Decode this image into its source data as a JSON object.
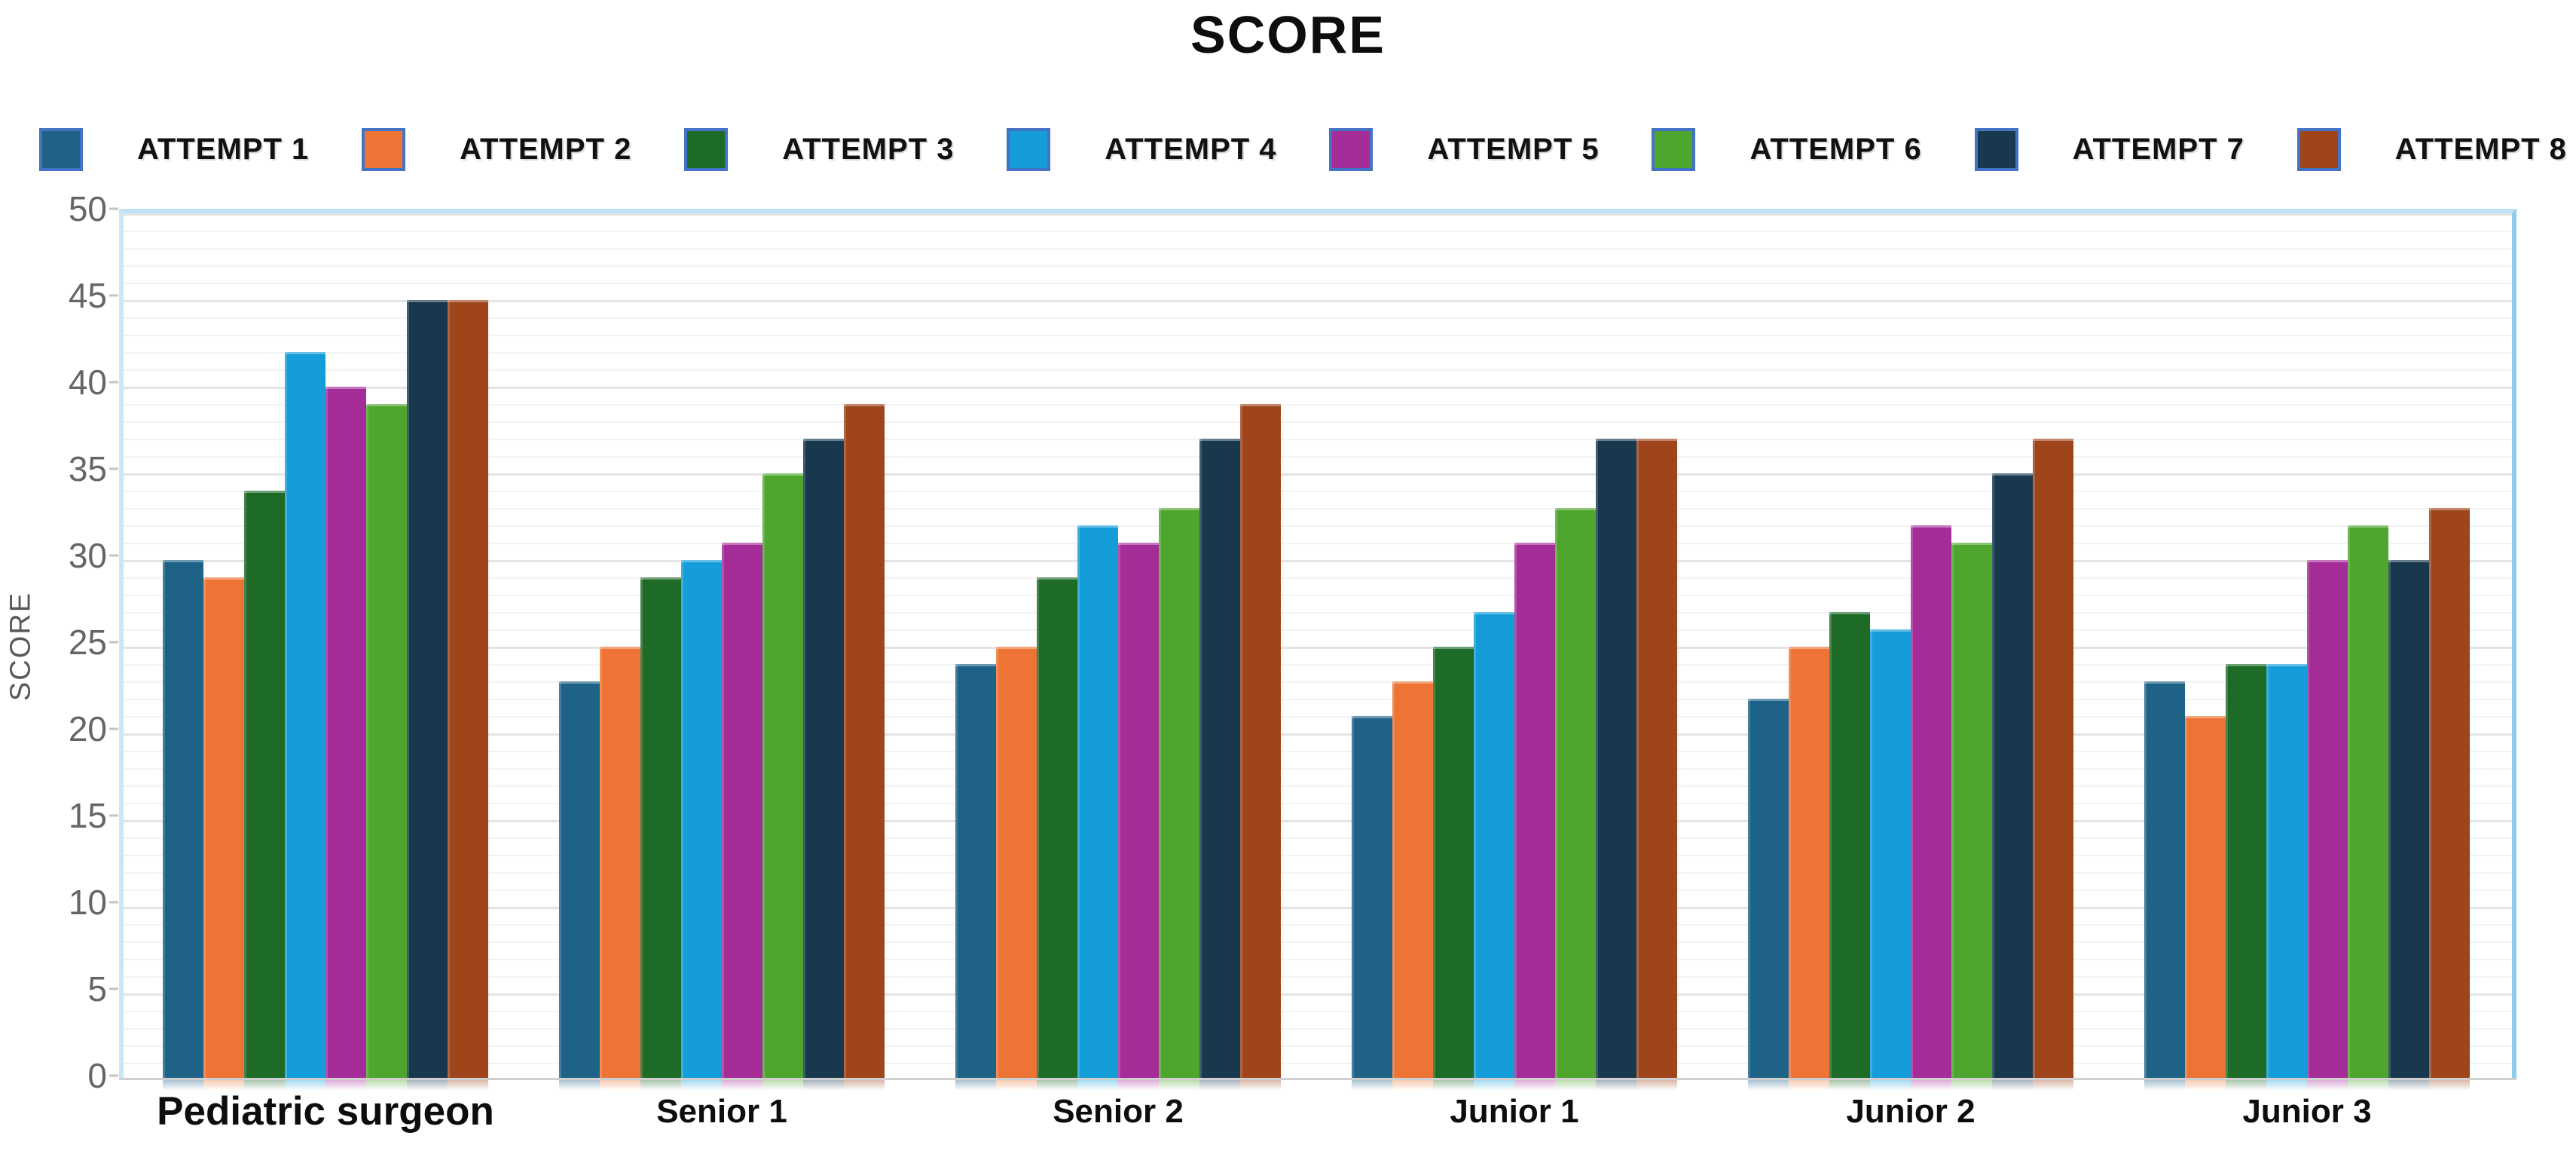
{
  "title": "SCORE",
  "y_axis": {
    "label": "SCORE",
    "ticks": [
      0,
      5,
      10,
      15,
      20,
      25,
      30,
      35,
      40,
      45,
      50
    ]
  },
  "legend": {
    "swatch_border_color": "#4472C4",
    "items": [
      "ATTEMPT 1",
      "ATTEMPT 2",
      "ATTEMPT 3",
      "ATTEMPT 4",
      "ATTEMPT 5",
      "ATTEMPT 6",
      "ATTEMPT 7",
      "ATTEMPT 8"
    ]
  },
  "chart_data": {
    "type": "bar",
    "title": "SCORE",
    "xlabel": "",
    "ylabel": "SCORE",
    "ylim": [
      0,
      50
    ],
    "ytick_step": 5,
    "grid": "horizontal, minor every 1 and major every 5",
    "legend_position": "top",
    "categories": [
      "Pediatric surgeon",
      "Senior 1",
      "Senior 2",
      "Junior 1",
      "Junior 2",
      "Junior 3"
    ],
    "series": [
      {
        "name": "ATTEMPT 1",
        "color": "#1F6287",
        "values": [
          30,
          23,
          24,
          21,
          22,
          23
        ]
      },
      {
        "name": "ATTEMPT 2",
        "color": "#ED7434",
        "values": [
          29,
          25,
          25,
          23,
          25,
          21
        ]
      },
      {
        "name": "ATTEMPT 3",
        "color": "#1E6B28",
        "values": [
          34,
          29,
          29,
          25,
          27,
          24
        ]
      },
      {
        "name": "ATTEMPT 4",
        "color": "#149DD9",
        "values": [
          42,
          30,
          32,
          27,
          26,
          24
        ]
      },
      {
        "name": "ATTEMPT 5",
        "color": "#A42D98",
        "values": [
          40,
          31,
          31,
          31,
          32,
          30
        ]
      },
      {
        "name": "ATTEMPT 6",
        "color": "#4FA62E",
        "values": [
          39,
          35,
          33,
          33,
          31,
          32
        ]
      },
      {
        "name": "ATTEMPT 7",
        "color": "#17384D",
        "values": [
          45,
          37,
          37,
          37,
          35,
          30
        ]
      },
      {
        "name": "ATTEMPT 8",
        "color": "#9E451C",
        "values": [
          45,
          39,
          39,
          37,
          37,
          33
        ]
      }
    ]
  }
}
